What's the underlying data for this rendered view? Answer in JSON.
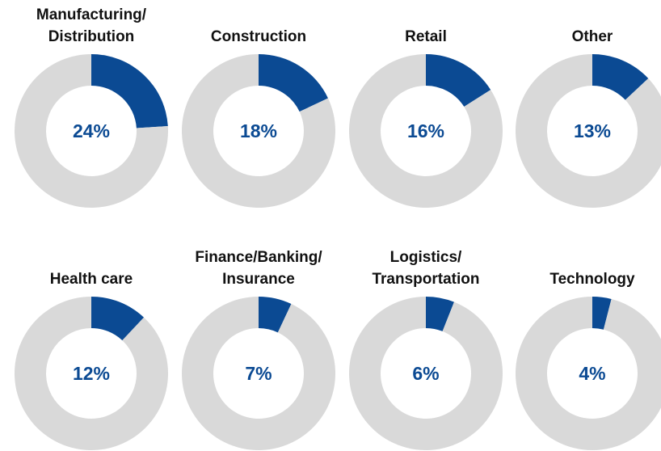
{
  "chart_data": [
    {
      "type": "donut",
      "title": "Manufacturing/\nDistribution",
      "values": [
        24,
        76
      ],
      "value_labels": [
        "24%",
        null
      ],
      "colors": [
        "#0b4a93",
        "#d9d9d9"
      ]
    },
    {
      "type": "donut",
      "title": "Construction",
      "values": [
        18,
        82
      ],
      "value_labels": [
        "18%",
        null
      ],
      "colors": [
        "#0b4a93",
        "#d9d9d9"
      ]
    },
    {
      "type": "donut",
      "title": "Retail",
      "values": [
        16,
        84
      ],
      "value_labels": [
        "16%",
        null
      ],
      "colors": [
        "#0b4a93",
        "#d9d9d9"
      ]
    },
    {
      "type": "donut",
      "title": "Other",
      "values": [
        13,
        87
      ],
      "value_labels": [
        "13%",
        null
      ],
      "colors": [
        "#0b4a93",
        "#d9d9d9"
      ]
    },
    {
      "type": "donut",
      "title": "Health care",
      "values": [
        12,
        88
      ],
      "value_labels": [
        "12%",
        null
      ],
      "colors": [
        "#0b4a93",
        "#d9d9d9"
      ]
    },
    {
      "type": "donut",
      "title": "Finance/Banking/\nInsurance",
      "values": [
        7,
        93
      ],
      "value_labels": [
        "7%",
        null
      ],
      "colors": [
        "#0b4a93",
        "#d9d9d9"
      ]
    },
    {
      "type": "donut",
      "title": "Logistics/\nTransportation",
      "values": [
        6,
        94
      ],
      "value_labels": [
        "6%",
        null
      ],
      "colors": [
        "#0b4a93",
        "#d9d9d9"
      ]
    },
    {
      "type": "donut",
      "title": "Technology",
      "values": [
        4,
        96
      ],
      "value_labels": [
        "4%",
        null
      ],
      "colors": [
        "#0b4a93",
        "#d9d9d9"
      ]
    }
  ]
}
